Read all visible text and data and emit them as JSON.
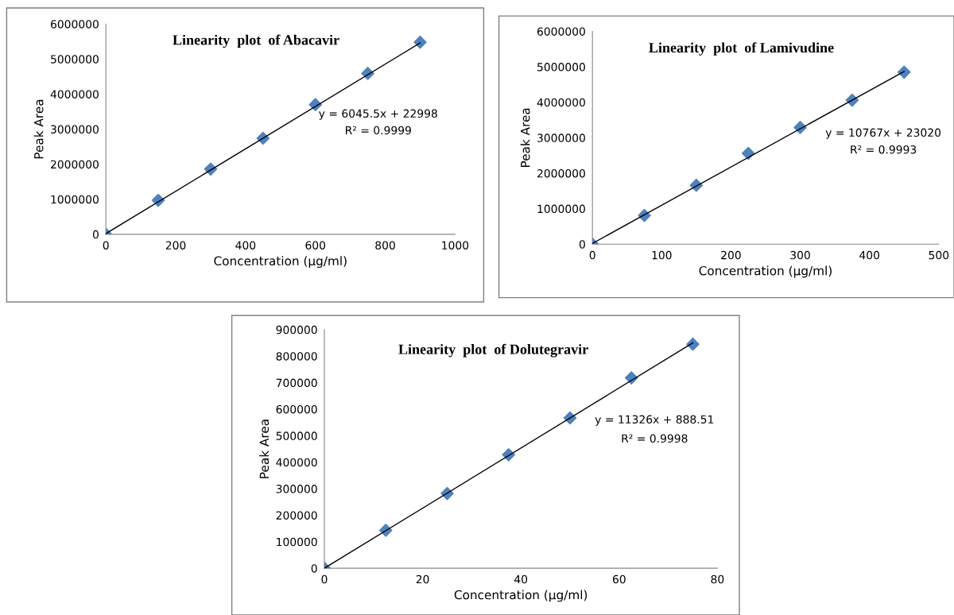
{
  "chart_data": [
    {
      "type": "scatter",
      "title": "Linearity  plot  of Abacavir",
      "xlabel": "Concentration (µg/ml)",
      "ylabel": "Peak Area",
      "xlim": [
        0,
        1000
      ],
      "xticks": [
        0,
        200,
        400,
        600,
        800,
        1000
      ],
      "ylim": [
        0,
        6000000
      ],
      "yticks": [
        0,
        1000000,
        2000000,
        3000000,
        4000000,
        5000000,
        6000000
      ],
      "grid": false,
      "legend": false,
      "marker": "diamond",
      "annotations": [
        "y = 6045.5x + 22998",
        "R² = 0.9999"
      ],
      "series": [
        {
          "color": "#4f81bd",
          "x": [
            0,
            150,
            300,
            450,
            600,
            750,
            900
          ],
          "values": [
            0,
            970000,
            1860000,
            2740000,
            3700000,
            4590000,
            5480000
          ]
        },
        {
          "type": "line",
          "color": "#000000",
          "marker": "none",
          "x": [
            0,
            900
          ],
          "values": [
            20000,
            5460000
          ]
        }
      ]
    },
    {
      "type": "scatter",
      "title": "Linearity  plot  of Lamivudine",
      "xlabel": "Concentration (µg/ml)",
      "ylabel": "Peak Area",
      "xlim": [
        0,
        500
      ],
      "xticks": [
        0,
        100,
        200,
        300,
        400,
        500
      ],
      "ylim": [
        0,
        6000000
      ],
      "yticks": [
        0,
        1000000,
        2000000,
        3000000,
        4000000,
        5000000,
        6000000
      ],
      "grid": false,
      "legend": false,
      "marker": "diamond",
      "annotations": [
        "y = 10767x + 23020",
        "R² = 0.9993"
      ],
      "series": [
        {
          "color": "#4f81bd",
          "x": [
            0,
            75,
            150,
            225,
            300,
            375,
            450
          ],
          "values": [
            0,
            810000,
            1660000,
            2560000,
            3290000,
            4060000,
            4850000
          ]
        },
        {
          "type": "line",
          "color": "#000000",
          "marker": "none",
          "x": [
            0,
            450
          ],
          "values": [
            20000,
            4870000
          ]
        }
      ]
    },
    {
      "type": "scatter",
      "title": "Linearity  plot  of Dolutegravir",
      "xlabel": "Concentration (µg/ml)",
      "ylabel": "Peak Area",
      "xlim": [
        0,
        80
      ],
      "xticks": [
        0,
        20,
        40,
        60,
        80
      ],
      "ylim": [
        0,
        900000
      ],
      "yticks": [
        0,
        100000,
        200000,
        300000,
        400000,
        500000,
        600000,
        700000,
        800000,
        900000
      ],
      "grid": false,
      "legend": false,
      "marker": "diamond",
      "annotations": [
        "y = 11326x + 888.51",
        "R² = 0.9998"
      ],
      "series": [
        {
          "color": "#4f81bd",
          "x": [
            0,
            12.5,
            25,
            37.5,
            50,
            62.5,
            75
          ],
          "values": [
            0,
            143000,
            282000,
            428000,
            567000,
            718000,
            845000
          ]
        },
        {
          "type": "line",
          "color": "#000000",
          "marker": "none",
          "x": [
            0,
            75
          ],
          "values": [
            0,
            850000
          ]
        }
      ]
    }
  ]
}
